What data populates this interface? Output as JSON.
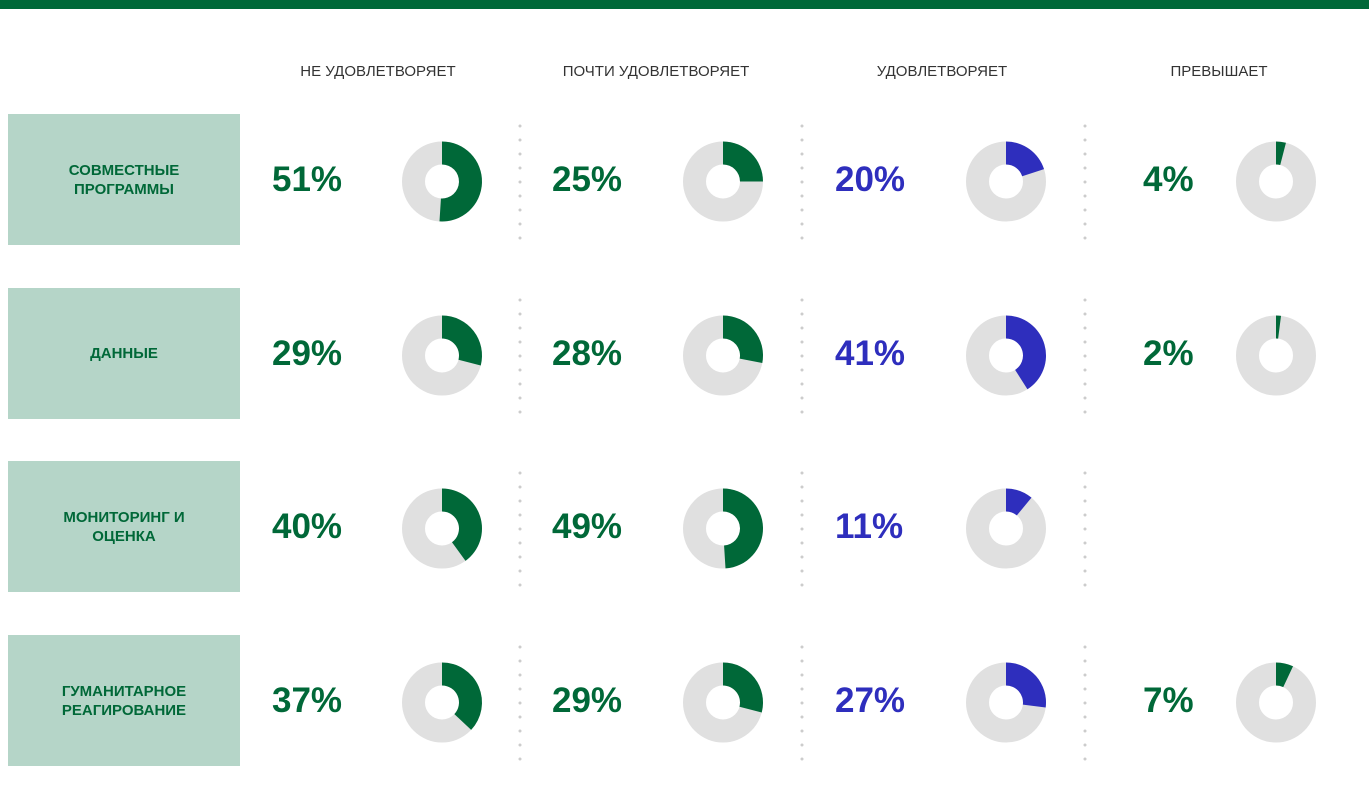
{
  "chart_data": {
    "type": "donut",
    "categories": [
      "СОВМЕСТНЫЕ ПРОГРАММЫ",
      "ДАННЫЕ",
      "МОНИТОРИНГ И ОЦЕНКА",
      "ГУМАНИТАРНОЕ РЕАГИРОВАНИЕ"
    ],
    "series": [
      {
        "name": "НЕ УДОВЛЕТВОРЯЕТ",
        "color": "#006838",
        "values": [
          51,
          29,
          40,
          37
        ],
        "value_labels": [
          "51%",
          "29%",
          "40%",
          "37%"
        ]
      },
      {
        "name": "ПОЧТИ УДОВЛЕТВОРЯЕТ",
        "color": "#006838",
        "values": [
          25,
          28,
          49,
          29
        ],
        "value_labels": [
          "25%",
          "28%",
          "49%",
          "29%"
        ]
      },
      {
        "name": "УДОВЛЕТВОРЯЕТ",
        "color": "#2e2ebd",
        "values": [
          20,
          41,
          11,
          27
        ],
        "value_labels": [
          "20%",
          "41%",
          "11%",
          "27%"
        ]
      },
      {
        "name": "ПРЕВЫШАЕТ",
        "color": "#006838",
        "values": [
          4,
          2,
          null,
          7
        ],
        "value_labels": [
          "4%",
          "2%",
          null,
          "7%"
        ]
      }
    ]
  }
}
